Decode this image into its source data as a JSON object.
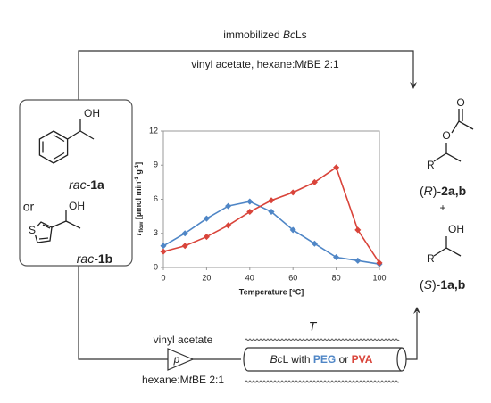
{
  "chart_data": {
    "type": "line",
    "xlabel": "Temperature [°C]",
    "ylabel_parts": [
      "r",
      "flow",
      " [µmol min",
      "-1",
      " g",
      "-1",
      "]"
    ],
    "x": [
      0,
      10,
      20,
      30,
      40,
      50,
      60,
      70,
      80,
      90,
      100
    ],
    "series": [
      {
        "color": "#4f86c6",
        "values": [
          1.9,
          3.0,
          4.3,
          5.4,
          5.8,
          4.9,
          3.3,
          2.1,
          0.9,
          0.6,
          0.3
        ]
      },
      {
        "color": "#d9443a",
        "values": [
          1.4,
          1.9,
          2.7,
          3.7,
          4.9,
          5.9,
          6.6,
          7.5,
          8.8,
          3.3,
          0.4
        ]
      }
    ],
    "xlim": [
      0,
      100
    ],
    "xticks": [
      0,
      20,
      40,
      60,
      80,
      100
    ],
    "ylim": [
      0,
      12
    ],
    "yticks": [
      0,
      3,
      6,
      9,
      12
    ],
    "grid": false
  },
  "diagram": {
    "top_label": [
      "immobilized ",
      "Bc",
      "Ls"
    ],
    "top_conditions": [
      "vinyl acetate, hexane:M",
      "t",
      "BE 2:1"
    ],
    "oh_1": "OH",
    "oh_2": "OH",
    "oh_3": "OH",
    "s_atom": "S",
    "substrate_1": [
      "rac-",
      "1a"
    ],
    "or": "or",
    "substrate_2": [
      "rac-",
      "1b"
    ],
    "r_group_1": "R",
    "r_group_2": "R",
    "o_ester": "O",
    "o_carbonyl": "O",
    "product_1": [
      "(",
      "R",
      ")-",
      "2a,b"
    ],
    "plus": "+",
    "product_2": [
      "(",
      "S",
      ")-",
      "1a,b"
    ],
    "pump_top": "vinyl acetate",
    "pump": "p",
    "pump_bottom": [
      "hexane:M",
      "t",
      "BE 2:1"
    ],
    "temperature": "T",
    "reactor": [
      "Bc",
      "L with ",
      "PEG",
      " or ",
      "PVA"
    ]
  }
}
